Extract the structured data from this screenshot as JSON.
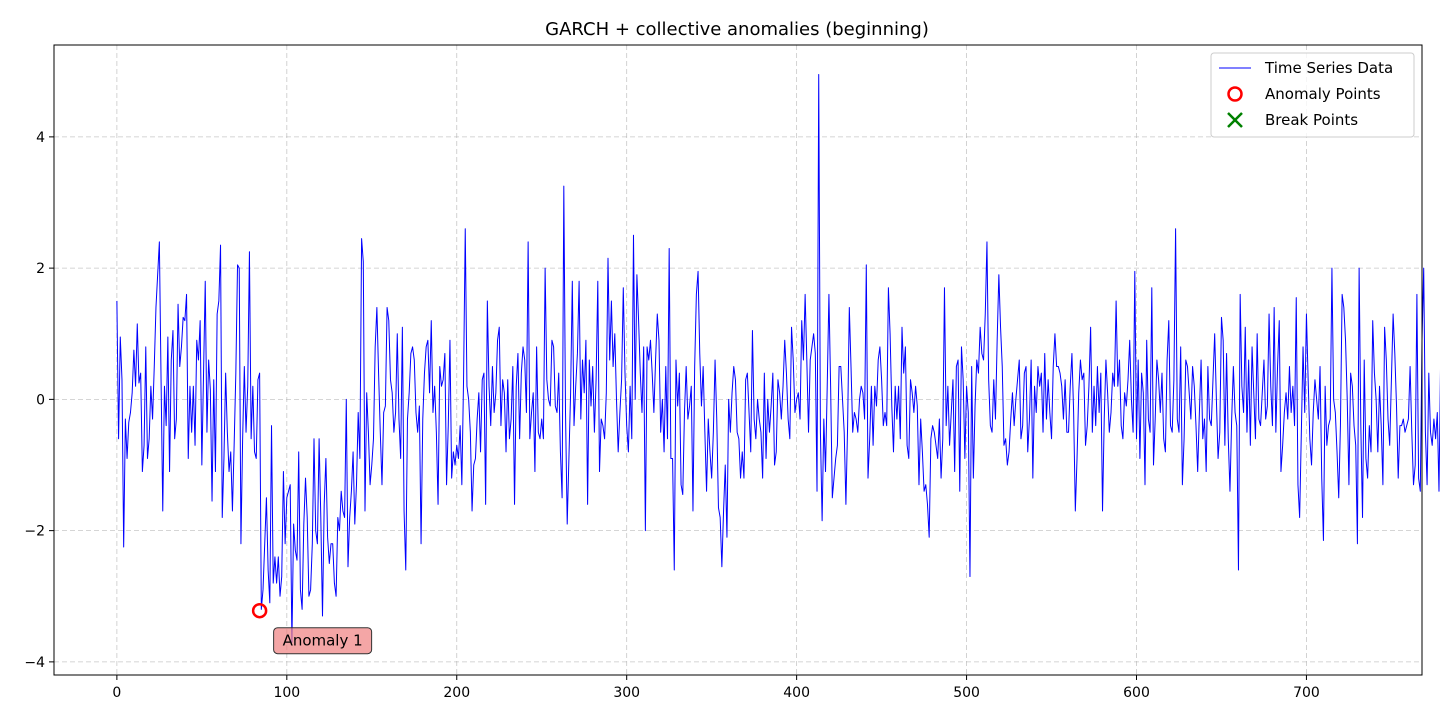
{
  "chart_data": {
    "type": "line",
    "title": "GARCH + collective anomalies (beginning)",
    "xlabel": "",
    "ylabel": "",
    "xlim": [
      -37,
      768
    ],
    "ylim": [
      -4.2,
      5.4
    ],
    "xticks": [
      0,
      100,
      200,
      300,
      400,
      500,
      600,
      700
    ],
    "yticks": [
      -4,
      -2,
      0,
      2,
      4
    ],
    "xtick_labels": [
      "0",
      "100",
      "200",
      "300",
      "400",
      "500",
      "600",
      "700"
    ],
    "ytick_labels": [
      "−4",
      "−2",
      "0",
      "2",
      "4"
    ],
    "grid": true,
    "legend_position": "top-right",
    "series": [
      {
        "name": "Time Series Data",
        "color": "#0000ff",
        "x_start": 0,
        "values": [
          1.5,
          -0.6,
          0.95,
          0.3,
          -2.25,
          -0.3,
          -0.9,
          -0.35,
          -0.2,
          0.1,
          0.75,
          0.2,
          1.15,
          0.25,
          0.4,
          -1.1,
          -0.7,
          0.8,
          -0.9,
          -0.6,
          0.2,
          -0.3,
          0.5,
          1.4,
          1.9,
          2.4,
          0.3,
          -1.7,
          0.2,
          -0.4,
          0.95,
          -1.1,
          0.6,
          1.05,
          -0.6,
          -0.3,
          1.45,
          0.5,
          0.8,
          1.25,
          1.2,
          1.6,
          -0.9,
          0.2,
          -0.5,
          0.2,
          -0.7,
          0.9,
          0.6,
          1.2,
          -1.0,
          0.4,
          1.8,
          -0.5,
          0.6,
          0.15,
          -1.55,
          0.3,
          -1.1,
          1.3,
          1.5,
          2.35,
          -1.8,
          -0.9,
          0.4,
          -0.5,
          -1.1,
          -0.8,
          -1.7,
          -0.7,
          0.4,
          2.05,
          2.0,
          -2.2,
          -0.6,
          0.5,
          -0.5,
          0.2,
          2.25,
          -0.6,
          0.2,
          -0.8,
          -0.9,
          0.3,
          0.4,
          -3.2,
          -2.9,
          -2.2,
          -1.5,
          -2.6,
          -3.1,
          -0.4,
          -2.8,
          -2.4,
          -2.8,
          -2.4,
          -3.0,
          -2.7,
          -1.1,
          -2.2,
          -1.5,
          -1.4,
          -1.3,
          -3.7,
          -1.9,
          -2.3,
          -2.45,
          -0.8,
          -2.9,
          -3.2,
          -1.9,
          -1.2,
          -1.8,
          -3.0,
          -2.9,
          -2.2,
          -0.6,
          -2.0,
          -2.2,
          -0.6,
          -1.8,
          -3.3,
          -1.6,
          -0.9,
          -2.1,
          -2.5,
          -2.2,
          -2.2,
          -2.8,
          -3.0,
          -1.8,
          -2.0,
          -1.4,
          -1.7,
          -1.8,
          0.0,
          -2.55,
          -1.8,
          -1.4,
          -0.8,
          -1.9,
          -1.3,
          -0.2,
          -0.9,
          2.45,
          2.1,
          -1.7,
          0.1,
          -0.5,
          -1.3,
          -1.0,
          -0.6,
          0.8,
          1.4,
          0.4,
          -0.5,
          -1.3,
          -0.2,
          -0.1,
          1.4,
          1.2,
          0.3,
          0.1,
          -0.5,
          -0.2,
          1.0,
          -0.3,
          -0.9,
          1.1,
          -1.7,
          -2.6,
          -0.3,
          0.1,
          0.7,
          0.8,
          0.6,
          -0.2,
          -0.5,
          -0.1,
          -2.2,
          -0.3,
          0.4,
          0.8,
          0.9,
          0.1,
          1.2,
          -0.2,
          0.2,
          -0.5,
          -1.6,
          0.5,
          0.2,
          0.3,
          0.7,
          -1.3,
          -0.4,
          0.9,
          -1.2,
          -0.8,
          -1.0,
          -0.7,
          -0.9,
          -0.4,
          -1.3,
          0.3,
          2.6,
          0.2,
          0.0,
          -0.5,
          -1.7,
          -1.0,
          -0.9,
          -0.3,
          0.1,
          -0.8,
          0.3,
          0.4,
          -1.6,
          1.5,
          0.2,
          -0.4,
          0.5,
          -0.2,
          0.1,
          0.9,
          1.1,
          -0.4,
          0.3,
          0.1,
          -0.8,
          0.3,
          -0.6,
          -0.3,
          0.5,
          -1.6,
          0.2,
          0.7,
          -0.6,
          0.4,
          0.8,
          0.6,
          -0.2,
          2.4,
          -0.6,
          -0.2,
          0.1,
          -1.1,
          0.8,
          -0.5,
          -0.6,
          -0.3,
          -0.6,
          2.0,
          0.3,
          0.0,
          -0.1,
          0.9,
          0.8,
          -0.1,
          -0.2,
          0.4,
          -0.8,
          -1.5,
          3.25,
          -0.2,
          -1.9,
          -0.9,
          0.1,
          1.8,
          -0.4,
          0.2,
          0.7,
          1.8,
          -0.3,
          0.6,
          0.1,
          0.9,
          -1.6,
          0.6,
          -0.1,
          0.5,
          -0.5,
          0.3,
          1.8,
          -1.1,
          -0.3,
          -0.4,
          -0.6,
          0.1,
          2.15,
          0.6,
          1.5,
          0.5,
          1.0,
          0.0,
          -0.8,
          -0.2,
          0.3,
          1.7,
          0.4,
          -0.4,
          -0.8,
          0.2,
          -0.6,
          2.5,
          0.0,
          1.9,
          1.2,
          0.4,
          -0.2,
          0.8,
          -2.0,
          0.8,
          0.6,
          0.9,
          0.4,
          -0.2,
          0.6,
          1.3,
          0.9,
          -0.5,
          0.0,
          -0.8,
          0.5,
          -0.6,
          2.3,
          -0.9,
          -0.9,
          -2.6,
          0.6,
          -0.1,
          0.4,
          -1.3,
          -1.45,
          -0.2,
          0.5,
          -0.3,
          -0.1,
          0.2,
          -1.7,
          0.5,
          1.6,
          1.95,
          0.7,
          -0.1,
          0.5,
          -0.5,
          -1.4,
          -0.3,
          -0.8,
          -1.2,
          -0.5,
          0.6,
          -0.3,
          -1.65,
          -1.8,
          -2.55,
          -1.7,
          -1.0,
          -2.1,
          0.0,
          -0.5,
          0.1,
          0.5,
          0.3,
          -0.5,
          -0.6,
          -1.2,
          -0.8,
          -1.2,
          0.3,
          0.4,
          -0.2,
          -0.8,
          1.05,
          -0.3,
          -0.6,
          0.0,
          -0.3,
          -0.5,
          -1.2,
          0.4,
          -0.9,
          0.0,
          -0.5,
          -0.1,
          0.4,
          -1.0,
          -0.8,
          0.3,
          0.1,
          -0.3,
          0.2,
          0.9,
          0.4,
          -0.3,
          -0.6,
          1.1,
          0.6,
          -0.2,
          0.0,
          0.1,
          -0.3,
          1.2,
          0.6,
          1.6,
          0.6,
          -0.5,
          0.6,
          0.8,
          1.0,
          0.7,
          -1.4,
          4.95,
          -0.5,
          -1.85,
          -0.3,
          -1.1,
          0.2,
          1.6,
          0.2,
          -1.5,
          -1.2,
          -0.9,
          -0.7,
          0.5,
          0.5,
          0.0,
          -0.5,
          -1.6,
          -0.4,
          1.4,
          0.5,
          -0.5,
          -0.2,
          -0.3,
          -0.5,
          0.0,
          0.2,
          0.1,
          -0.3,
          2.05,
          -1.2,
          -0.6,
          0.2,
          -0.7,
          0.2,
          -0.1,
          0.6,
          0.8,
          0.3,
          -0.4,
          -0.2,
          -0.4,
          1.7,
          1.0,
          -0.1,
          -0.8,
          0.2,
          -0.3,
          0.2,
          -0.6,
          1.1,
          0.4,
          0.8,
          -0.7,
          -0.9,
          0.3,
          0.1,
          -0.2,
          0.2,
          -0.1,
          -1.3,
          -0.3,
          -0.8,
          -1.4,
          -1.3,
          -1.6,
          -2.1,
          -0.6,
          -0.4,
          -0.5,
          -0.7,
          -0.9,
          -0.3,
          -1.2,
          -0.6,
          1.7,
          -0.4,
          0.2,
          -0.7,
          -0.2,
          0.3,
          -1.1,
          0.5,
          0.6,
          -1.4,
          0.8,
          0.3,
          -0.9,
          0.2,
          -0.2,
          -2.7,
          0.5,
          -1.2,
          -0.1,
          0.6,
          0.4,
          1.1,
          0.7,
          0.6,
          1.3,
          2.4,
          0.3,
          -0.4,
          -0.5,
          0.3,
          -0.3,
          0.9,
          1.9,
          1.1,
          0.5,
          -0.7,
          -0.6,
          -1.0,
          -0.8,
          -0.3,
          0.1,
          -0.4,
          0.0,
          0.3,
          0.6,
          -0.6,
          -0.4,
          0.4,
          0.5,
          -0.8,
          -0.3,
          0.6,
          -1.2,
          0.2,
          -0.2,
          0.5,
          0.2,
          0.4,
          -0.5,
          0.7,
          -0.3,
          0.3,
          -0.2,
          -0.6,
          0.5,
          1.0,
          0.5,
          0.5,
          0.4,
          0.2,
          -0.3,
          0.3,
          -0.5,
          -0.5,
          0.2,
          0.7,
          -0.2,
          -1.7,
          -0.9,
          0.1,
          0.6,
          0.3,
          0.4,
          -0.7,
          -0.4,
          0.2,
          1.1,
          -0.5,
          0.2,
          -0.4,
          0.5,
          -0.2,
          0.4,
          -1.7,
          -0.3,
          0.6,
          0.1,
          -0.5,
          -0.2,
          0.4,
          0.2,
          1.5,
          0.2,
          0.6,
          -0.4,
          -0.6,
          0.1,
          -0.1,
          0.3,
          0.9,
          0.0,
          -0.5,
          1.95,
          -0.6,
          0.6,
          -0.9,
          0.4,
          0.1,
          -1.3,
          0.9,
          -0.3,
          -0.5,
          1.7,
          -1.0,
          -0.3,
          0.6,
          0.3,
          -0.2,
          0.4,
          -0.6,
          -0.8,
          0.6,
          1.2,
          -0.4,
          -0.5,
          0.3,
          2.6,
          -0.3,
          -0.5,
          0.8,
          -1.3,
          -0.6,
          0.6,
          0.5,
          0.1,
          -0.3,
          0.5,
          0.2,
          -0.4,
          -1.1,
          -0.2,
          0.6,
          -0.6,
          -0.3,
          -1.1,
          0.5,
          -0.3,
          -0.4,
          0.3,
          1.0,
          0.0,
          -0.9,
          -0.5,
          1.25,
          0.9,
          -0.7,
          0.7,
          -0.6,
          -1.4,
          -0.3,
          0.5,
          -0.2,
          -0.4,
          -2.6,
          1.6,
          0.2,
          -0.2,
          1.1,
          -0.5,
          0.6,
          -0.7,
          0.8,
          0.1,
          -0.6,
          1.0,
          -0.3,
          -0.4,
          0.1,
          0.6,
          -0.3,
          -0.1,
          1.3,
          0.2,
          -0.4,
          1.4,
          -0.5,
          0.5,
          1.2,
          -1.1,
          -0.7,
          -0.2,
          0.1,
          -0.3,
          0.5,
          -0.2,
          0.2,
          -0.4,
          1.55,
          -1.3,
          -1.8,
          -0.5,
          0.8,
          -0.2,
          1.3,
          0.3,
          -0.6,
          -1.0,
          -0.2,
          0.3,
          0.0,
          -0.3,
          0.5,
          -1.2,
          -2.15,
          0.2,
          -0.7,
          -0.4,
          -0.3,
          2.0,
          0.0,
          -0.2,
          -0.8,
          -1.5,
          -0.4,
          1.6,
          1.4,
          0.9,
          0.0,
          -1.3,
          0.4,
          0.2,
          -0.4,
          -0.7,
          -2.2,
          2.0,
          -0.4,
          -1.8,
          0.6,
          -0.9,
          -1.2,
          -0.4,
          -0.8,
          1.2,
          0.4,
          0.0,
          -0.8,
          0.2,
          -0.4,
          -1.3,
          1.1,
          0.6,
          -0.3,
          -0.7,
          0.3,
          1.3,
          0.7,
          -0.1,
          -1.2,
          -0.4,
          -0.4,
          -0.3,
          -0.5,
          -0.4,
          -0.3,
          0.5,
          -0.5,
          -1.3,
          -1.0,
          1.6,
          -1.2,
          -1.4,
          0.9,
          2.0,
          -0.5,
          -1.3,
          0.4,
          -0.5,
          -0.7,
          -0.3,
          -0.6,
          -0.2,
          -1.4,
          0.7,
          -1.7,
          -1.2,
          -0.6,
          0.8,
          1.0,
          -0.6,
          0.6,
          -0.5,
          0.9,
          -0.4,
          -1.3,
          -1.0,
          2.05,
          0.4,
          0.2,
          2.35,
          0.3,
          -1.4,
          0.9,
          1.1,
          0.6,
          -0.8,
          -0.4,
          0.1,
          -0.3,
          -1.2,
          0.3,
          0.5,
          0.2,
          -0.4,
          0.1,
          0.3,
          -0.5,
          -0.1,
          0.4,
          -0.6,
          -0.7,
          0.3,
          0.95,
          -0.3,
          -1.3,
          -1.1,
          0.3,
          -0.4,
          -0.1,
          0.6,
          -0.2,
          0.2,
          -0.4,
          -0.9,
          0.3,
          -1.5,
          0.5,
          -0.6,
          -0.3,
          0.1,
          -0.2,
          -1.0,
          0.5,
          -0.5,
          0.8,
          0.1,
          -1.1,
          -0.4,
          -3.3,
          -0.2,
          -1.7,
          0.5,
          -0.1,
          -0.3,
          -0.8,
          1.4,
          0.8,
          2.65,
          0.7,
          -0.9,
          0.75
        ]
      }
    ],
    "anomaly_points": [
      {
        "x": 84,
        "y": -3.22
      }
    ],
    "break_points": [],
    "annotations": [
      {
        "text": "Anomaly 1",
        "x": 84,
        "y": -3.22
      }
    ],
    "legend": [
      {
        "label": "Time Series Data",
        "marker": "line",
        "color": "#0000ff"
      },
      {
        "label": "Anomaly Points",
        "marker": "circle",
        "color": "#ff0000"
      },
      {
        "label": "Break Points",
        "marker": "x",
        "color": "#008000"
      }
    ]
  }
}
